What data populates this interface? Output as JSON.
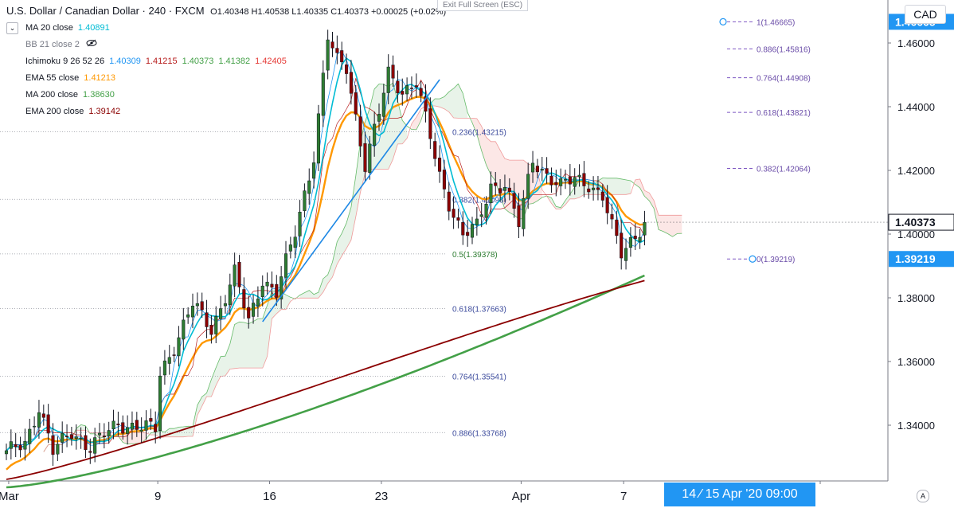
{
  "header": {
    "symbol": "U.S. Dollar / Canadian Dollar · 240 · FXCM",
    "ohlc": "O1.40348  H1.40538  L1.40335  C1.40373  +0.00025 (+0.02%)",
    "exit_fullscreen": "Exit Full Screen (ESC)",
    "currency_button": "CAD",
    "collapse_icon": "chevron-down-icon",
    "hide_icon": "eye-crossed-icon",
    "settings_icon": "auto-scale-icon",
    "settings_label": "A",
    "collapse_glyph": "⌄"
  },
  "indicators": [
    {
      "label": "MA 20 close",
      "value": "1.40891",
      "color": "#00bcd4"
    },
    {
      "label": "BB 21 close 2",
      "value": "",
      "color": "#787b86"
    },
    {
      "label": "Ichimoku 9 26 52 26",
      "values": [
        "1.40309",
        "1.41215",
        "1.40373",
        "1.41382",
        "1.42405"
      ],
      "colors": [
        "#2196f3",
        "#b71c1c",
        "#43a047",
        "#43a047",
        "#e53935"
      ]
    },
    {
      "label": "EMA 55 close",
      "value": "1.41213",
      "color": "#ff9800"
    },
    {
      "label": "MA 200 close",
      "value": "1.38630",
      "color": "#43a047"
    },
    {
      "label": "EMA 200 close",
      "value": "1.39142",
      "color": "#8b0000"
    }
  ],
  "footer": {
    "crosshair_date": "14 ⁄ 15 Apr '20   09:00"
  },
  "chart_data": {
    "type": "candlestick",
    "ylim": [
      1.3225,
      1.4735
    ],
    "yticks": [
      "1.34000",
      "1.36000",
      "1.38000",
      "1.40000",
      "1.42000",
      "1.44000",
      "1.46000"
    ],
    "x_labels": [
      "Mar",
      "9",
      "16",
      "23",
      "Apr",
      "7"
    ],
    "x_label_positions": [
      0.5,
      32.5,
      56.5,
      80.5,
      110.5,
      132.5
    ],
    "price_labels": [
      {
        "text": "1.46665",
        "value": 1.46665,
        "bg": "#2196f3"
      },
      {
        "text": "1.40373",
        "value": 1.40373,
        "bg": "#ffffff",
        "fg": "#131722"
      },
      {
        "text": "1.39219",
        "value": 1.39219,
        "bg": "#2196f3"
      }
    ],
    "fib_levels": [
      {
        "text": "1(1.46665)",
        "value": 1.46665
      },
      {
        "text": "0.886(1.45816)",
        "value": 1.45816
      },
      {
        "text": "0.764(1.44908)",
        "value": 1.44908
      },
      {
        "text": "0.618(1.43821)",
        "value": 1.43821
      },
      {
        "text": "0.382(1.42064)",
        "value": 1.42064
      },
      {
        "text": "0(1.39219)",
        "value": 1.39219
      }
    ],
    "fib_levels_left": [
      {
        "text": "0.236(1.43215)",
        "value": 1.43215
      },
      {
        "text": "0.382(1.41093)",
        "value": 1.41093
      },
      {
        "text": "0.5(1.39378)",
        "value": 1.39378
      },
      {
        "text": "0.618(1.37663)",
        "value": 1.37663
      },
      {
        "text": "0.764(1.35541)",
        "value": 1.35541
      },
      {
        "text": "0.886(1.33768)",
        "value": 1.33768
      }
    ],
    "keypoints": [
      [
        0,
        1.331
      ],
      [
        4,
        1.3345
      ],
      [
        7,
        1.346
      ],
      [
        10,
        1.3315
      ],
      [
        14,
        1.338
      ],
      [
        18,
        1.333
      ],
      [
        24,
        1.3405
      ],
      [
        29,
        1.3395
      ],
      [
        32,
        1.3385
      ],
      [
        33,
        1.356
      ],
      [
        36,
        1.365
      ],
      [
        40,
        1.378
      ],
      [
        44,
        1.37
      ],
      [
        49,
        1.388
      ],
      [
        52,
        1.372
      ],
      [
        55,
        1.386
      ],
      [
        58,
        1.382
      ],
      [
        62,
        1.4
      ],
      [
        66,
        1.425
      ],
      [
        69,
        1.462
      ],
      [
        71,
        1.454
      ],
      [
        73,
        1.452
      ],
      [
        77,
        1.422
      ],
      [
        80,
        1.438
      ],
      [
        82,
        1.45
      ],
      [
        85,
        1.445
      ],
      [
        88,
        1.448
      ],
      [
        91,
        1.43
      ],
      [
        93,
        1.418
      ],
      [
        95,
        1.41
      ],
      [
        98,
        1.4
      ],
      [
        101,
        1.402
      ],
      [
        104,
        1.415
      ],
      [
        107,
        1.416
      ],
      [
        110,
        1.403
      ],
      [
        113,
        1.423
      ],
      [
        116,
        1.419
      ],
      [
        119,
        1.415
      ],
      [
        122,
        1.417
      ],
      [
        125,
        1.416
      ],
      [
        128,
        1.412
      ],
      [
        130,
        1.402
      ],
      [
        132,
        1.3935
      ],
      [
        135,
        1.4
      ],
      [
        137,
        1.4037
      ]
    ]
  }
}
